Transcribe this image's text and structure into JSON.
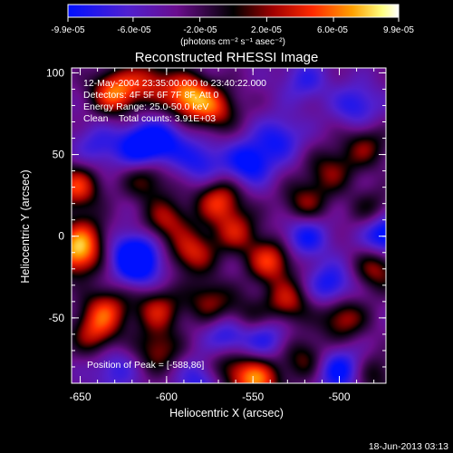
{
  "chart_data": {
    "type": "heatmap",
    "title": "Reconstructed RHESSI Image",
    "xlabel": "Heliocentric X (arcsec)",
    "ylabel": "Heliocentric Y (arcsec)",
    "xlim": [
      -655,
      -473
    ],
    "ylim": [
      -90,
      103
    ],
    "x_ticks": [
      -650,
      -600,
      -550,
      -500
    ],
    "y_ticks": [
      100,
      50,
      0,
      -50
    ],
    "x_tick_labels": [
      "-650",
      "-600",
      "-550",
      "-500"
    ],
    "y_tick_labels": [
      "100",
      "50",
      "0",
      "-50"
    ],
    "colorbar": {
      "range": [
        -9.9e-05,
        9.9e-05
      ],
      "ticks": [
        -9.9e-05,
        -6e-05,
        -2e-05,
        2e-05,
        6e-05,
        9.9e-05
      ],
      "tick_labels": [
        "-9.9e-05",
        "-6.0e-05",
        "-2.0e-05",
        "2.0e-05",
        "6.0e-05",
        "9.9e-05"
      ],
      "units": "(photons cm⁻² s⁻¹ asec⁻²)",
      "colormap": [
        "#0000ff",
        "#6a0dad",
        "#000000",
        "#a00000",
        "#ff2000",
        "#ff8000",
        "#ffff60",
        "#ffffff"
      ]
    },
    "annotations": [
      "12-May-2004 23:35:00.000 to 23:40:22.000",
      "Detectors: 4F 5F 6F 7F 8F, Att 0",
      "Energy Range: 25.0-50.0 keV",
      "Clean    Total counts: 3.91E+03"
    ],
    "peak_label": "Position of Peak = [-588,86]",
    "peak": [
      -588,
      86
    ],
    "blobs": [
      {
        "x": -630,
        "y": 88,
        "v": 0.95
      },
      {
        "x": -588,
        "y": 86,
        "v": 1.0
      },
      {
        "x": -572,
        "y": 78,
        "v": 0.7
      },
      {
        "x": -610,
        "y": 95,
        "v": 0.6
      },
      {
        "x": -652,
        "y": 30,
        "v": 0.8
      },
      {
        "x": -652,
        "y": -12,
        "v": 0.85
      },
      {
        "x": -648,
        "y": 0,
        "v": 0.6
      },
      {
        "x": -612,
        "y": 35,
        "v": 0.5
      },
      {
        "x": -600,
        "y": 10,
        "v": 0.6
      },
      {
        "x": -585,
        "y": -10,
        "v": 0.7
      },
      {
        "x": -570,
        "y": 22,
        "v": 0.75
      },
      {
        "x": -560,
        "y": 3,
        "v": 0.6
      },
      {
        "x": -540,
        "y": -15,
        "v": 0.8
      },
      {
        "x": -530,
        "y": -40,
        "v": 0.65
      },
      {
        "x": -520,
        "y": 20,
        "v": 0.55
      },
      {
        "x": -555,
        "y": -52,
        "v": 0.55
      },
      {
        "x": -520,
        "y": -75,
        "v": 0.5
      },
      {
        "x": -498,
        "y": -50,
        "v": 0.65
      },
      {
        "x": -478,
        "y": -20,
        "v": 0.6
      },
      {
        "x": -480,
        "y": 15,
        "v": 0.45
      },
      {
        "x": -635,
        "y": -45,
        "v": 0.7
      },
      {
        "x": -605,
        "y": -45,
        "v": 0.65
      },
      {
        "x": -642,
        "y": -60,
        "v": 0.6
      },
      {
        "x": -605,
        "y": -70,
        "v": 0.55
      },
      {
        "x": -505,
        "y": 40,
        "v": 0.5
      },
      {
        "x": -485,
        "y": 55,
        "v": 0.5
      },
      {
        "x": -548,
        "y": -88,
        "v": 0.95
      },
      {
        "x": -565,
        "y": -80,
        "v": 0.5
      },
      {
        "x": -575,
        "y": -40,
        "v": 0.55
      },
      {
        "x": -480,
        "y": -85,
        "v": 0.4
      }
    ],
    "dips": [
      {
        "x": -615,
        "y": 55,
        "v": -0.8
      },
      {
        "x": -600,
        "y": 58,
        "v": -0.5
      },
      {
        "x": -620,
        "y": -10,
        "v": -0.6
      },
      {
        "x": -615,
        "y": -18,
        "v": -0.6
      },
      {
        "x": -580,
        "y": 45,
        "v": -0.5
      },
      {
        "x": -563,
        "y": -60,
        "v": -0.7
      },
      {
        "x": -543,
        "y": -62,
        "v": -0.5
      },
      {
        "x": -552,
        "y": 45,
        "v": -0.7
      },
      {
        "x": -520,
        "y": 0,
        "v": -0.6
      },
      {
        "x": -505,
        "y": -30,
        "v": -0.6
      },
      {
        "x": -500,
        "y": -82,
        "v": -0.7
      },
      {
        "x": -473,
        "y": 2,
        "v": -0.9
      },
      {
        "x": -490,
        "y": 80,
        "v": -0.5
      },
      {
        "x": -520,
        "y": 95,
        "v": -0.4
      },
      {
        "x": -640,
        "y": 55,
        "v": -0.4
      },
      {
        "x": -580,
        "y": -88,
        "v": -0.5
      },
      {
        "x": -630,
        "y": -82,
        "v": -0.4
      },
      {
        "x": -535,
        "y": 60,
        "v": -0.5
      }
    ]
  },
  "footer": {
    "date": "18-Jun-2013 03:13"
  }
}
